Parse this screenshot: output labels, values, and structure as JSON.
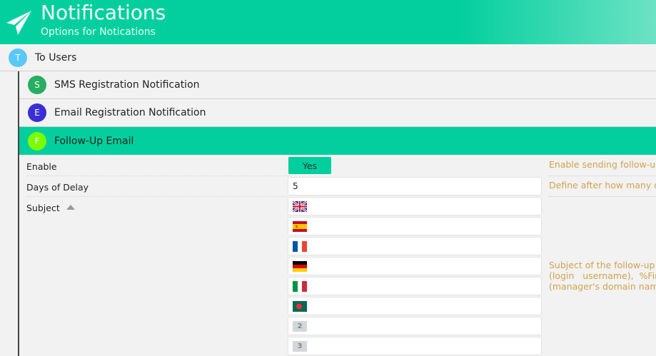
{
  "header": {
    "title": "Notifications",
    "subtitle": "Options for Notications",
    "icon": "paper-plane-icon"
  },
  "group": {
    "letter": "T",
    "label": "To Users",
    "color": "#5ac8fa"
  },
  "sections": [
    {
      "letter": "S",
      "label": "SMS Registration Notification",
      "color": "#27ae60"
    },
    {
      "letter": "E",
      "label": "Email Registration Notification",
      "color": "#3a2ed6"
    },
    {
      "letter": "F",
      "label": "Follow-Up Email",
      "color": "#7cfc00",
      "active": true
    }
  ],
  "form": {
    "enable": {
      "label": "Enable",
      "value": "Yes",
      "description": "Enable sending follow-u"
    },
    "delay": {
      "label": "Days of Delay",
      "value": "5",
      "description": "Define after how many d"
    },
    "subject": {
      "label": "Subject",
      "languages": [
        "en",
        "es",
        "fr",
        "de",
        "it",
        "bd",
        "2",
        "3"
      ],
      "description": [
        "Subject of the follow-up",
        "(login   username),  %Fir",
        "(manager's domain nam"
      ]
    }
  },
  "colors": {
    "accent": "#03cf9e",
    "description": "#d2a24c"
  }
}
